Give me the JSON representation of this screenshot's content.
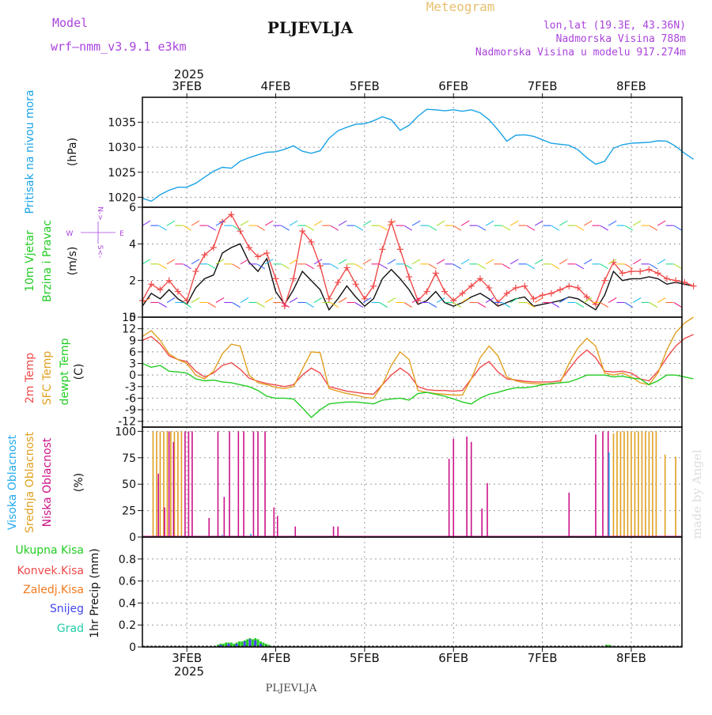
{
  "header": {
    "model_label": "Model",
    "model_name": "wrf–nmm_v3.9.1  e3km",
    "station": "PLJEVLJA",
    "meteogram": "Meteogram",
    "lonlat": "lon,lat (19.3E, 43.36N)",
    "elevation": "Nadmorska Visina 788m",
    "model_elevation": "Nadmorska Visina u modelu 917.274m",
    "footer_station": "PLJEVLJA",
    "watermark": "made by Angel"
  },
  "colors": {
    "pressure": "#1aa3e6",
    "wind_label": "#22cc22",
    "temp2m": "#f04a4a",
    "sfc": "#e0a020",
    "dewpt": "#22cc22",
    "high_cloud": "#22aaee",
    "mid_cloud": "#e0a020",
    "low_cloud": "#cc1188",
    "total_precip": "#22cc22",
    "conv_precip": "#f04a4a",
    "frz_precip": "#f07a20",
    "snow": "#4444ee",
    "hail": "#22ccaa",
    "purple_text": "#aa44dd",
    "gold_text": "#e8c070"
  },
  "chart_data": [
    {
      "type": "line",
      "id": "pressure",
      "title": "Pritisak na nivou mora",
      "ylabel": "(hPa)",
      "ylim": [
        1018,
        1040
      ],
      "yticks": [
        1020,
        1025,
        1030,
        1035
      ],
      "x_unit": "days since 3FEB 00UTC",
      "x": [
        -0.5,
        -0.4,
        -0.3,
        -0.2,
        -0.1,
        0,
        0.1,
        0.2,
        0.3,
        0.4,
        0.5,
        0.6,
        0.7,
        0.8,
        0.9,
        1.0,
        1.1,
        1.2,
        1.3,
        1.4,
        1.5,
        1.6,
        1.7,
        1.8,
        1.9,
        2.0,
        2.1,
        2.2,
        2.3,
        2.4,
        2.5,
        2.6,
        2.7,
        2.8,
        2.9,
        3.0,
        3.1,
        3.2,
        3.3,
        3.4,
        3.5,
        3.6,
        3.7,
        3.8,
        3.9,
        4.0,
        4.1,
        4.2,
        4.3,
        4.4,
        4.5,
        4.6,
        4.7,
        4.8,
        4.9,
        5.0,
        5.1,
        5.2,
        5.3,
        5.4,
        5.5,
        5.6,
        5.7
      ],
      "series": [
        {
          "name": "Pritisak",
          "values": [
            1019.8,
            1019.2,
            1020.5,
            1021.4,
            1022.0,
            1022.0,
            1022.8,
            1024.0,
            1025.2,
            1026.0,
            1025.8,
            1027.2,
            1027.9,
            1028.5,
            1029.0,
            1029.1,
            1029.6,
            1030.3,
            1029.2,
            1028.8,
            1029.3,
            1031.8,
            1033.3,
            1034.0,
            1034.6,
            1034.7,
            1035.3,
            1036.1,
            1035.5,
            1033.4,
            1034.4,
            1036.2,
            1037.6,
            1037.5,
            1037.3,
            1037.5,
            1037.2,
            1037.5,
            1036.9,
            1035.5,
            1033.5,
            1031.2,
            1032.4,
            1032.5,
            1032.2,
            1031.5,
            1030.8,
            1030.6,
            1030.4,
            1029.5,
            1027.9,
            1026.6,
            1027.2,
            1029.8,
            1030.5,
            1030.8,
            1030.9,
            1031.0,
            1031.3,
            1031.2,
            1030.2,
            1028.8,
            1027.6
          ]
        }
      ]
    },
    {
      "type": "line",
      "id": "wind",
      "title": "10m Vjetar",
      "subtitle": "Brzina i Pravac",
      "ylabel": "(m/s)",
      "ylim": [
        0,
        6
      ],
      "yticks": [
        0,
        2,
        4,
        6
      ],
      "compass_labels": [
        "N",
        "S",
        "W",
        "E"
      ],
      "x": [
        -0.5,
        -0.4,
        -0.3,
        -0.2,
        -0.1,
        0,
        0.1,
        0.2,
        0.3,
        0.4,
        0.5,
        0.6,
        0.7,
        0.8,
        0.9,
        1.0,
        1.1,
        1.2,
        1.3,
        1.4,
        1.5,
        1.6,
        1.7,
        1.8,
        1.9,
        2.0,
        2.1,
        2.2,
        2.3,
        2.4,
        2.5,
        2.6,
        2.7,
        2.8,
        2.9,
        3.0,
        3.1,
        3.2,
        3.3,
        3.4,
        3.5,
        3.6,
        3.7,
        3.8,
        3.9,
        4.0,
        4.1,
        4.2,
        4.3,
        4.4,
        4.5,
        4.6,
        4.7,
        4.8,
        4.9,
        5.0,
        5.1,
        5.2,
        5.3,
        5.4,
        5.5,
        5.6,
        5.7
      ],
      "series": [
        {
          "name": "10m wind speed",
          "values": [
            0.6,
            1.3,
            1.0,
            1.5,
            1.0,
            0.7,
            1.6,
            2.1,
            2.3,
            3.5,
            3.8,
            4.0,
            3.0,
            2.5,
            3.2,
            1.4,
            0.7,
            1.5,
            2.5,
            2.0,
            1.5,
            0.4,
            1.0,
            1.7,
            1.1,
            0.6,
            1.0,
            2.1,
            2.6,
            2.1,
            1.5,
            0.7,
            0.9,
            1.4,
            0.8,
            0.6,
            0.8,
            1.1,
            1.3,
            1.0,
            0.6,
            0.8,
            1.0,
            1.1,
            0.6,
            0.7,
            0.8,
            0.9,
            1.1,
            1.0,
            0.7,
            0.4,
            1.2,
            2.5,
            2.0,
            2.1,
            2.1,
            2.2,
            2.1,
            1.8,
            1.9,
            1.8,
            1.7
          ]
        },
        {
          "name": "gust",
          "values": [
            0.9,
            1.8,
            1.5,
            2.0,
            1.4,
            0.9,
            2.5,
            3.4,
            3.8,
            5.2,
            5.6,
            4.7,
            3.8,
            3.3,
            3.5,
            2.1,
            0.6,
            2.1,
            4.7,
            4.1,
            2.8,
            1.0,
            1.9,
            2.7,
            1.8,
            1.0,
            1.7,
            3.7,
            5.2,
            3.7,
            2.2,
            0.9,
            1.4,
            2.4,
            1.4,
            0.9,
            1.3,
            1.7,
            2.1,
            1.6,
            0.8,
            1.3,
            1.6,
            1.7,
            1.0,
            1.2,
            1.3,
            1.5,
            1.7,
            1.6,
            1.1,
            0.7,
            2.0,
            3.0,
            2.4,
            2.5,
            2.5,
            2.6,
            2.4,
            2.1,
            2.0,
            1.9,
            1.7
          ]
        }
      ]
    },
    {
      "type": "line",
      "id": "temperature",
      "labels": [
        "2m Temp",
        "SFC Temp",
        "dewpt Temp"
      ],
      "ylabel": "(C)",
      "ylim": [
        -13.5,
        15
      ],
      "yticks": [
        -12,
        -9,
        -6,
        -3,
        0,
        3,
        6,
        9,
        12,
        15
      ],
      "x": [
        -0.5,
        -0.4,
        -0.3,
        -0.2,
        -0.1,
        0,
        0.1,
        0.2,
        0.3,
        0.4,
        0.5,
        0.6,
        0.7,
        0.8,
        0.9,
        1.0,
        1.1,
        1.2,
        1.3,
        1.4,
        1.5,
        1.6,
        1.7,
        1.8,
        1.9,
        2.0,
        2.1,
        2.2,
        2.3,
        2.4,
        2.5,
        2.6,
        2.7,
        2.8,
        2.9,
        3.0,
        3.1,
        3.2,
        3.3,
        3.4,
        3.5,
        3.6,
        3.7,
        3.8,
        3.9,
        4.0,
        4.1,
        4.2,
        4.3,
        4.4,
        4.5,
        4.6,
        4.7,
        4.8,
        4.9,
        5.0,
        5.1,
        5.2,
        5.3,
        5.4,
        5.5,
        5.6,
        5.7
      ],
      "series": [
        {
          "name": "2m Temp",
          "values": [
            9.0,
            10.0,
            8.0,
            5.0,
            4.0,
            3.5,
            1.0,
            -0.5,
            0.5,
            2.5,
            3.2,
            1.5,
            -0.8,
            -1.6,
            -2.2,
            -2.6,
            -3.0,
            -2.5,
            0.0,
            1.8,
            0.5,
            -3.0,
            -3.6,
            -4.2,
            -4.5,
            -4.8,
            -5.0,
            -2.5,
            0.0,
            1.8,
            0.2,
            -3.0,
            -3.8,
            -4.0,
            -4.0,
            -4.2,
            -4.0,
            -1.0,
            2.0,
            3.5,
            0.8,
            -1.0,
            -1.3,
            -1.6,
            -1.8,
            -1.8,
            -1.8,
            -1.5,
            1.5,
            4.5,
            6.5,
            4.5,
            1.0,
            0.8,
            1.0,
            0.5,
            -1.0,
            -1.5,
            1.0,
            4.5,
            7.5,
            9.5,
            10.5
          ]
        },
        {
          "name": "SFC Temp",
          "values": [
            10.0,
            11.5,
            9.0,
            5.5,
            4.0,
            3.0,
            0.0,
            -1.0,
            1.0,
            5.5,
            8.0,
            7.5,
            0.0,
            -2.0,
            -2.5,
            -3.2,
            -3.5,
            -3.0,
            1.5,
            6.0,
            5.8,
            -3.5,
            -4.2,
            -4.8,
            -5.2,
            -5.8,
            -6.0,
            -2.5,
            2.5,
            6.0,
            4.0,
            -4.0,
            -4.5,
            -4.8,
            -5.0,
            -5.2,
            -5.2,
            -1.0,
            4.5,
            7.5,
            5.0,
            -0.5,
            -1.5,
            -2.0,
            -2.2,
            -2.3,
            -2.3,
            -2.0,
            3.0,
            7.0,
            9.5,
            7.5,
            0.5,
            0.0,
            0.5,
            -0.5,
            -2.0,
            -2.5,
            0.5,
            6.5,
            11.0,
            13.5,
            15.0
          ]
        },
        {
          "name": "dewpt Temp",
          "values": [
            3.0,
            2.0,
            2.5,
            1.0,
            0.8,
            0.5,
            -1.0,
            -1.5,
            -1.3,
            -1.8,
            -2.0,
            -2.5,
            -3.0,
            -4.0,
            -5.5,
            -6.0,
            -6.0,
            -6.2,
            -8.5,
            -11.0,
            -9.0,
            -7.5,
            -7.2,
            -7.0,
            -7.0,
            -7.2,
            -7.5,
            -6.5,
            -6.2,
            -6.0,
            -6.5,
            -4.8,
            -4.5,
            -5.0,
            -5.5,
            -6.2,
            -7.0,
            -7.5,
            -6.0,
            -5.0,
            -4.5,
            -3.8,
            -3.3,
            -3.3,
            -3.0,
            -2.5,
            -2.2,
            -2.0,
            -1.8,
            -1.0,
            0.0,
            0.0,
            0.0,
            -0.5,
            -0.3,
            -0.8,
            -1.0,
            -2.5,
            -1.5,
            0.0,
            0.0,
            -0.5,
            -1.0
          ]
        }
      ]
    },
    {
      "type": "bar",
      "id": "clouds",
      "labels": [
        "Visoka Oblacnost",
        "Srednja Oblacnost",
        "Niska Oblacnost"
      ],
      "ylabel": "(%)",
      "ylim": [
        0,
        104
      ],
      "yticks": [
        0,
        25,
        50,
        75,
        100
      ],
      "series": [
        {
          "name": "Srednja Oblacnost",
          "x": [
            -0.38,
            -0.34,
            -0.3,
            -0.26,
            -0.22,
            -0.18,
            -0.14,
            -0.1,
            -0.06,
            4.8,
            4.84,
            4.88,
            4.92,
            4.96,
            5.0,
            5.04,
            5.08,
            5.12,
            5.16,
            5.2,
            5.24,
            5.28,
            5.38,
            5.5
          ],
          "values": [
            100,
            100,
            100,
            100,
            100,
            100,
            100,
            100,
            100,
            98,
            100,
            100,
            100,
            100,
            100,
            100,
            100,
            100,
            100,
            100,
            100,
            100,
            78,
            76
          ]
        },
        {
          "name": "Niska Oblacnost",
          "x": [
            -0.32,
            -0.25,
            -0.2,
            -0.15,
            -0.02,
            0.02,
            0.06,
            0.25,
            0.35,
            0.42,
            0.48,
            0.58,
            0.64,
            0.75,
            0.8,
            0.88,
            0.98,
            1.02,
            1.22,
            1.65,
            1.7,
            2.95,
            3.0,
            3.15,
            3.2,
            3.32,
            3.38,
            4.3,
            4.6,
            4.68,
            4.74
          ],
          "values": [
            60,
            28,
            100,
            90,
            100,
            100,
            100,
            18,
            100,
            38,
            100,
            100,
            100,
            100,
            100,
            100,
            28,
            20,
            10,
            10,
            10,
            74,
            93,
            95,
            90,
            27,
            51,
            42,
            97,
            100,
            100
          ]
        },
        {
          "name": "Visoka Oblacnost",
          "x": [
            0.4,
            0.72,
            4.75
          ],
          "values": [
            2,
            3,
            80
          ]
        }
      ]
    },
    {
      "type": "bar",
      "id": "precip",
      "labels": [
        "Ukupna  Kisa",
        "Konvek.Kisa",
        "Zaledj.Kisa",
        "Snijeg",
        "Grad"
      ],
      "ylabel": "1hr Precip (mm)",
      "ylim": [
        0,
        1.0
      ],
      "yticks": [
        0,
        0.2,
        0.4,
        0.6,
        0.8
      ],
      "series": [
        {
          "name": "Ukupna Kisa",
          "x": [
            0.35,
            0.38,
            0.41,
            0.44,
            0.47,
            0.5,
            0.53,
            0.56,
            0.59,
            0.62,
            0.65,
            0.68,
            0.71,
            0.74,
            0.77,
            0.8,
            0.83,
            0.86,
            0.89,
            0.92,
            0.95,
            4.72,
            4.75,
            4.78
          ],
          "values": [
            0.02,
            0.03,
            0.03,
            0.04,
            0.04,
            0.04,
            0.03,
            0.04,
            0.05,
            0.05,
            0.06,
            0.07,
            0.08,
            0.07,
            0.08,
            0.07,
            0.05,
            0.04,
            0.03,
            0.02,
            0.01,
            0.02,
            0.02,
            0.01
          ]
        },
        {
          "name": "Snijeg",
          "x": [
            0.38,
            0.47,
            0.56,
            0.65,
            0.71,
            0.77,
            0.83
          ],
          "values": [
            0.02,
            0.03,
            0.03,
            0.05,
            0.07,
            0.06,
            0.03
          ]
        }
      ]
    }
  ],
  "x_axis": {
    "year": "2025",
    "day_labels": [
      "3FEB",
      "4FEB",
      "5FEB",
      "6FEB",
      "7FEB",
      "8FEB"
    ],
    "x_range": [
      -0.5,
      5.57
    ]
  }
}
